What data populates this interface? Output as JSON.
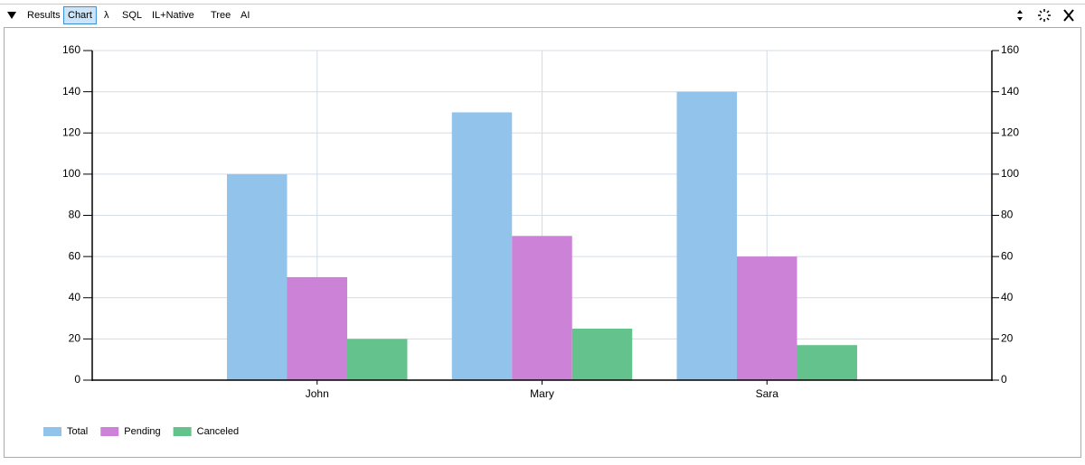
{
  "toolbar": {
    "tabs": [
      "Results",
      "Chart",
      "λ",
      "SQL",
      "IL+Native",
      "Tree",
      "AI"
    ],
    "selected": 1
  },
  "chart_data": {
    "type": "bar",
    "categories": [
      "John",
      "Mary",
      "Sara"
    ],
    "series": [
      {
        "name": "Total",
        "color": "#92c3ea",
        "values": [
          100,
          130,
          140
        ]
      },
      {
        "name": "Pending",
        "color": "#cc82d6",
        "values": [
          50,
          70,
          60
        ]
      },
      {
        "name": "Canceled",
        "color": "#64c28c",
        "values": [
          20,
          25,
          17
        ]
      }
    ],
    "ylim": [
      0,
      160
    ],
    "yticks": [
      0,
      20,
      40,
      60,
      80,
      100,
      120,
      140,
      160
    ],
    "y2lim": [
      0,
      160
    ],
    "y2ticks": [
      0,
      20,
      40,
      60,
      80,
      100,
      120,
      140,
      160
    ],
    "grid": true,
    "legend": "bottom-left"
  }
}
